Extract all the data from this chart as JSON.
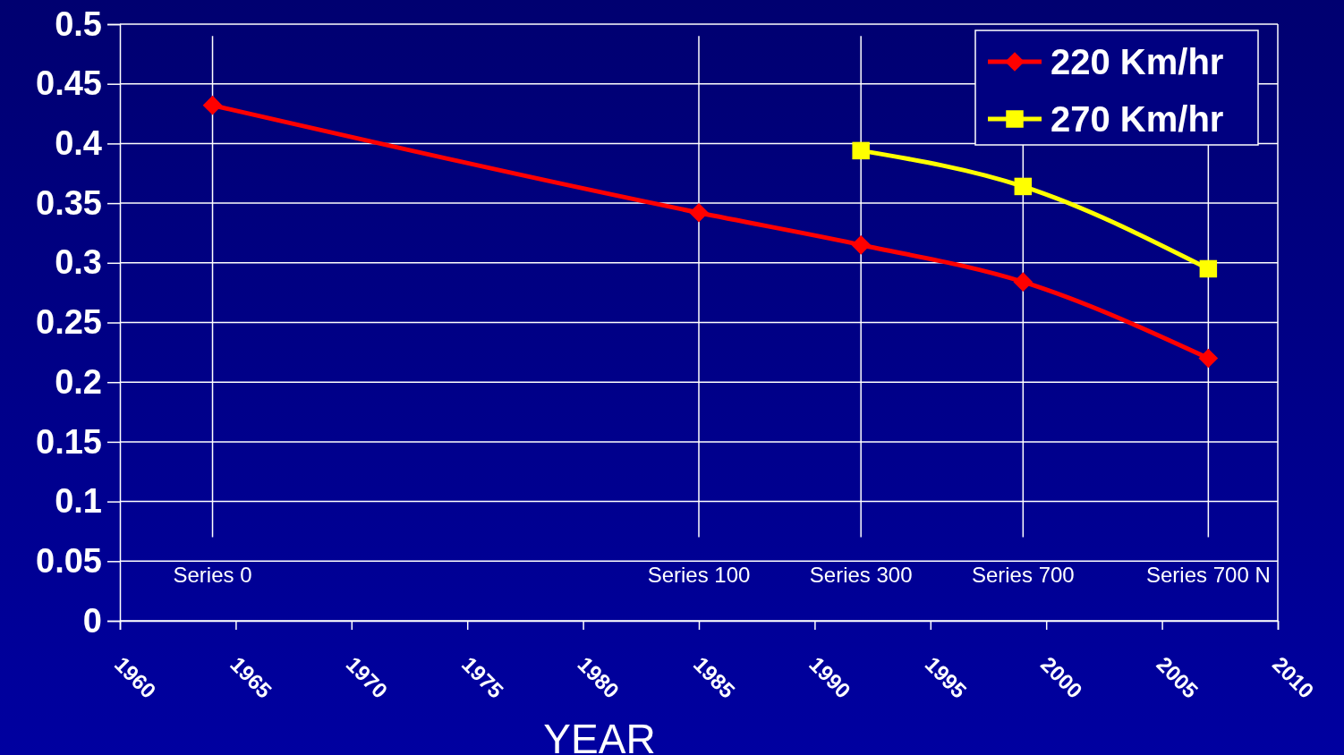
{
  "chart_data": {
    "type": "line",
    "xlabel": "YEAR",
    "xlim": [
      1960,
      2010
    ],
    "xticks": [
      1960,
      1965,
      1970,
      1975,
      1980,
      1985,
      1990,
      1995,
      2000,
      2005,
      2010
    ],
    "ylim": [
      0,
      0.5
    ],
    "yticks": [
      0,
      0.05,
      0.1,
      0.15,
      0.2,
      0.25,
      0.3,
      0.35,
      0.4,
      0.45,
      0.5
    ],
    "grid": "y",
    "legend": "top right",
    "series": [
      {
        "name": "220 Km/hr",
        "color": "#ff0000",
        "marker": "diamond",
        "x": [
          1964,
          1985,
          1992,
          1999,
          2007
        ],
        "values": [
          0.432,
          0.342,
          0.315,
          0.284,
          0.22
        ]
      },
      {
        "name": "270 Km/hr",
        "color": "#ffff00",
        "marker": "square",
        "x": [
          1992,
          1999,
          2007
        ],
        "values": [
          0.394,
          0.364,
          0.295
        ]
      }
    ],
    "ref_lines": [
      {
        "axis": "x",
        "value": 1964,
        "label": "Series 0"
      },
      {
        "axis": "x",
        "value": 1985,
        "label": "Series 100"
      },
      {
        "axis": "x",
        "value": 1992,
        "label": "Series 300"
      },
      {
        "axis": "x",
        "value": 1999,
        "label": "Series 700"
      },
      {
        "axis": "x",
        "value": 2007,
        "label": "Series 700 N"
      }
    ]
  }
}
